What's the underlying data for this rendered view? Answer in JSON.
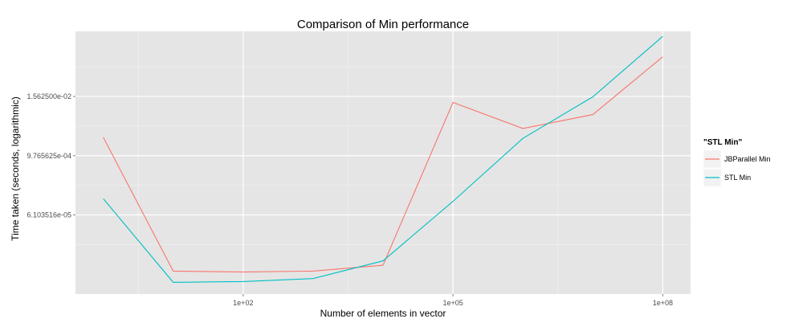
{
  "chart_data": {
    "type": "line",
    "title": "Comparison of Min performance",
    "xlabel": "Number  of elements in vector",
    "ylabel": "Time taken (seconds, logarithmic)",
    "x_scale": "log10",
    "y_scale": "log2",
    "xlim": [
      0.4,
      250000000
    ],
    "ylim": [
      1.5e-06,
      0.33
    ],
    "x_ticks": [
      {
        "value": 100,
        "label": "1e+02"
      },
      {
        "value": 100000,
        "label": "1e+05"
      },
      {
        "value": 100000000,
        "label": "1e+08"
      }
    ],
    "y_ticks": [
      {
        "value": 6.103516e-05,
        "label": "6.103516e-05"
      },
      {
        "value": 0.0009765625,
        "label": "9.765625e-04"
      },
      {
        "value": 0.015625,
        "label": "1.562500e-02"
      }
    ],
    "grid": true,
    "legend": {
      "title": "\"STL Min\"",
      "position": "right"
    },
    "series": [
      {
        "name": "JBParallel Min",
        "color": "#F8766D",
        "points": [
          [
            1,
            0.0023
          ],
          [
            10,
            4.4e-06
          ],
          [
            100,
            4.2e-06
          ],
          [
            1000,
            4.4e-06
          ],
          [
            10000,
            5.8e-06
          ],
          [
            100000,
            0.0118
          ],
          [
            1000000,
            0.0035
          ],
          [
            10000000,
            0.0067
          ],
          [
            100000000,
            0.1
          ]
        ]
      },
      {
        "name": "STL Min",
        "color": "#00BFC4",
        "points": [
          [
            1,
            0.00013
          ],
          [
            10,
            2.6e-06
          ],
          [
            100,
            2.7e-06
          ],
          [
            1000,
            3.1e-06
          ],
          [
            10000,
            7.1e-06
          ],
          [
            100000,
            0.000115
          ],
          [
            1000000,
            0.0022
          ],
          [
            10000000,
            0.0154
          ],
          [
            100000000,
            0.26
          ]
        ]
      }
    ]
  }
}
